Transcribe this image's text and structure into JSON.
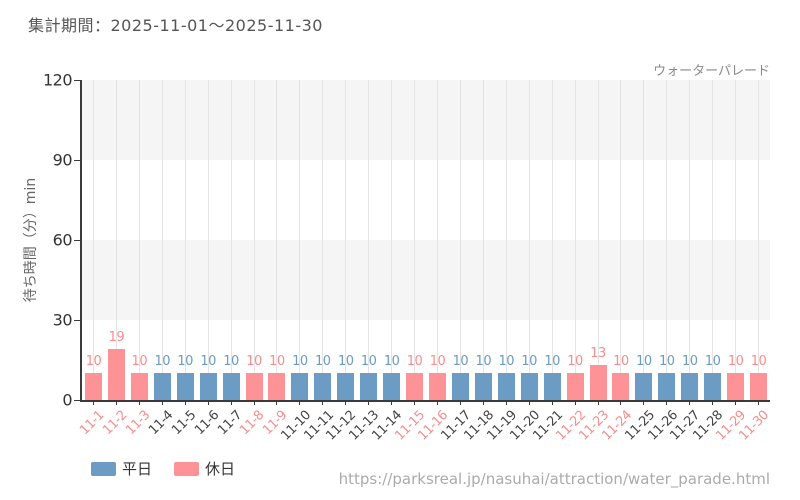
{
  "header": {
    "title": "集計期間：2025-11-01～2025-11-30",
    "series_name": "ウォーターパレード"
  },
  "chart_data": {
    "type": "bar",
    "title": "集計期間：2025-11-01～2025-11-30",
    "series_label": "ウォーターパレード",
    "xlabel": "",
    "ylabel": "待ち時間（分）min",
    "ylim": [
      0,
      120
    ],
    "yticks": [
      0,
      30,
      60,
      90,
      120
    ],
    "grid": "alternating horizontal bands with vertical gridlines per category",
    "legend_position": "bottom-left",
    "categories": [
      "11-1",
      "11-2",
      "11-3",
      "11-4",
      "11-5",
      "11-6",
      "11-7",
      "11-8",
      "11-9",
      "11-10",
      "11-11",
      "11-12",
      "11-13",
      "11-14",
      "11-15",
      "11-16",
      "11-17",
      "11-18",
      "11-19",
      "11-20",
      "11-21",
      "11-22",
      "11-23",
      "11-24",
      "11-25",
      "11-26",
      "11-27",
      "11-28",
      "11-29",
      "11-30"
    ],
    "values": [
      10,
      19,
      10,
      10,
      10,
      10,
      10,
      10,
      10,
      10,
      10,
      10,
      10,
      10,
      10,
      10,
      10,
      10,
      10,
      10,
      10,
      10,
      13,
      10,
      10,
      10,
      10,
      10,
      10,
      10
    ],
    "day_types": [
      "holiday",
      "holiday",
      "holiday",
      "weekday",
      "weekday",
      "weekday",
      "weekday",
      "holiday",
      "holiday",
      "weekday",
      "weekday",
      "weekday",
      "weekday",
      "weekday",
      "holiday",
      "holiday",
      "weekday",
      "weekday",
      "weekday",
      "weekday",
      "weekday",
      "holiday",
      "holiday",
      "holiday",
      "weekday",
      "weekday",
      "weekday",
      "weekday",
      "holiday",
      "holiday"
    ]
  },
  "legend": {
    "items": [
      {
        "key": "weekday",
        "label": "平日",
        "color": "#6c9bc3"
      },
      {
        "key": "holiday",
        "label": "休日",
        "color": "#fd9396"
      }
    ]
  },
  "colors": {
    "weekday_bar": "#6c9bc3",
    "weekday_value_text": "#6c9bc3",
    "weekday_date_text": "#454545",
    "holiday_bar": "#fd9396",
    "holiday_value_text": "#fa8d8d",
    "holiday_date_text": "#fa8d8d",
    "band_gray": "#f5f5f6",
    "band_white": "#ffffff",
    "gridline": "#e4e4e7",
    "axis": "#3a3a3a",
    "ytick_text": "#333333"
  },
  "footer": {
    "url": "https://parksreal.jp/nasuhai/attraction/water_parade.html"
  }
}
